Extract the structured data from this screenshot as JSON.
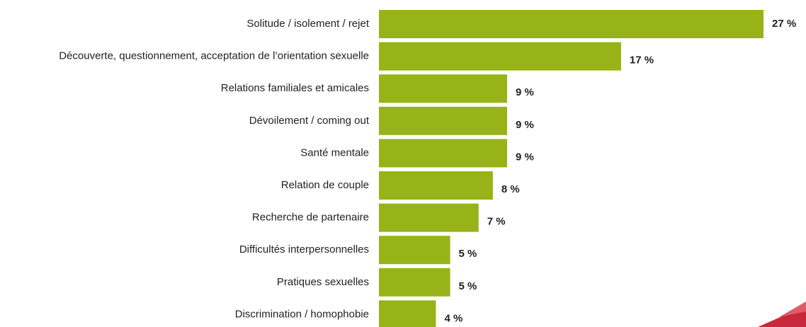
{
  "chart_data": {
    "type": "bar",
    "orientation": "horizontal",
    "categories": [
      "Solitude / isolement / rejet",
      "Découverte, questionnement, acceptation de l’orientation sexuelle",
      "Relations familiales et amicales",
      "Dévoilement / coming out",
      "Santé mentale",
      "Relation de couple",
      "Recherche de partenaire",
      "Difficultés interpersonnelles",
      "Pratiques sexuelles",
      "Discrimination / homophobie"
    ],
    "values": [
      27,
      17,
      9,
      9,
      9,
      8,
      7,
      5,
      5,
      4
    ],
    "value_labels": [
      "27 %",
      "17 %",
      "9 %",
      "9 %",
      "9 %",
      "8 %",
      "7 %",
      "5 %",
      "5 %",
      "4 %"
    ],
    "color": "#97b317"
  }
}
